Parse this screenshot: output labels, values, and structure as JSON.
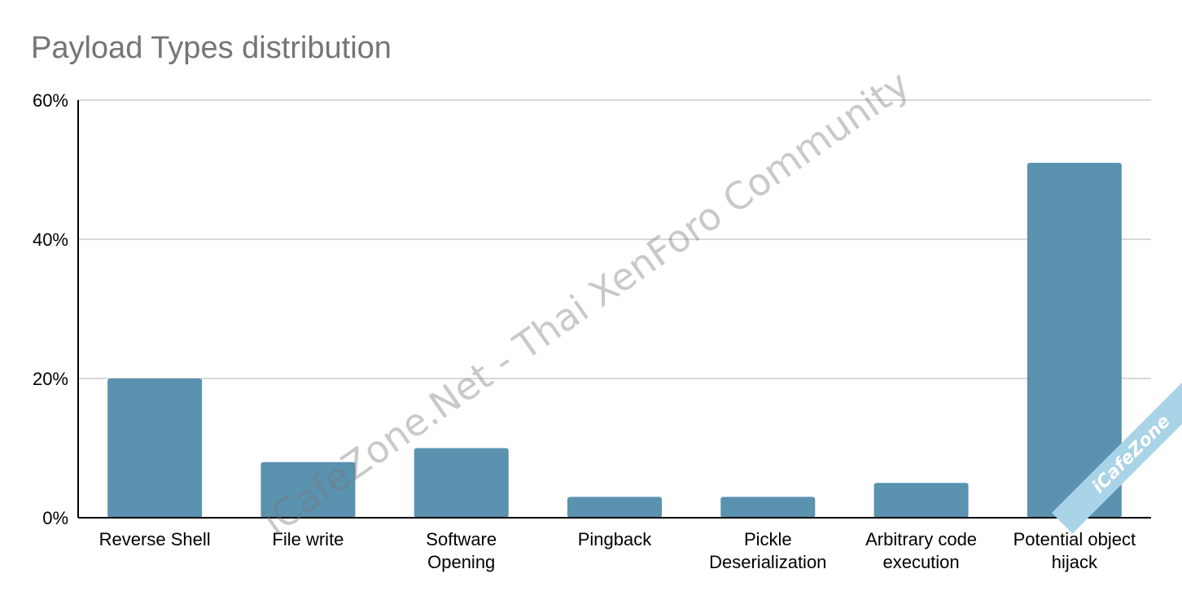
{
  "chart_data": {
    "type": "bar",
    "title": "Payload Types distribution",
    "categories": [
      [
        "Reverse Shell"
      ],
      [
        "File write"
      ],
      [
        "Software",
        "Opening"
      ],
      [
        "Pingback"
      ],
      [
        "Pickle",
        "Deserialization"
      ],
      [
        "Arbitrary code",
        "execution"
      ],
      [
        "Potential object",
        "hijack"
      ]
    ],
    "values": [
      20,
      8,
      10,
      3,
      3,
      5,
      51
    ],
    "ylim": [
      0,
      60
    ],
    "yticks": [
      "0%",
      "20%",
      "40%",
      "60%"
    ],
    "ytick_values": [
      0,
      20,
      40,
      60
    ],
    "xlabel": "",
    "ylabel": "",
    "grid": true,
    "legend": "none",
    "colors": {
      "bar": "#5a92b0",
      "grid": "#cccccc",
      "axis": "#000000",
      "title": "#757575"
    }
  },
  "watermark": {
    "text": "iCafeZone.Net - Thai XenForo Community"
  },
  "corner_badge": {
    "text": "iCafeZone"
  }
}
